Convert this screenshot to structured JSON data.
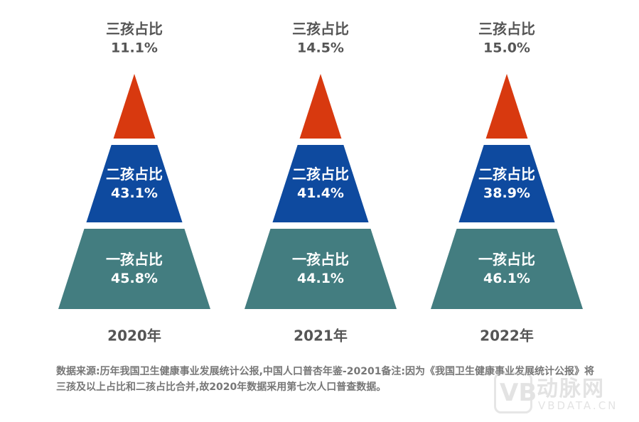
{
  "chart_data": {
    "type": "pyramid",
    "levels": [
      "一孩占比",
      "二孩占比",
      "三孩占比"
    ],
    "colors": {
      "一孩占比": "#437d80",
      "二孩占比": "#0e4a9f",
      "三孩占比": "#d8390f"
    },
    "value_format": "percent",
    "series": [
      {
        "year": "2020年",
        "values": [
          45.8,
          43.1,
          11.1
        ]
      },
      {
        "year": "2021年",
        "values": [
          44.1,
          41.4,
          14.5
        ]
      },
      {
        "year": "2022年",
        "values": [
          46.1,
          38.9,
          15.0
        ]
      }
    ]
  },
  "footnote": "数据来源:历年我国卫生健康事业发展统计公报,中国人口普杏年鉴-20201备注:因为《我国卫生健康事业发展统计公报》将三孩及以上占比和二孩占比合并,故2020年数据采用第七次人口普查数据。",
  "watermark": {
    "logo_glyph": "VB",
    "name": "动脉网",
    "url": "VBDATA.CN"
  }
}
